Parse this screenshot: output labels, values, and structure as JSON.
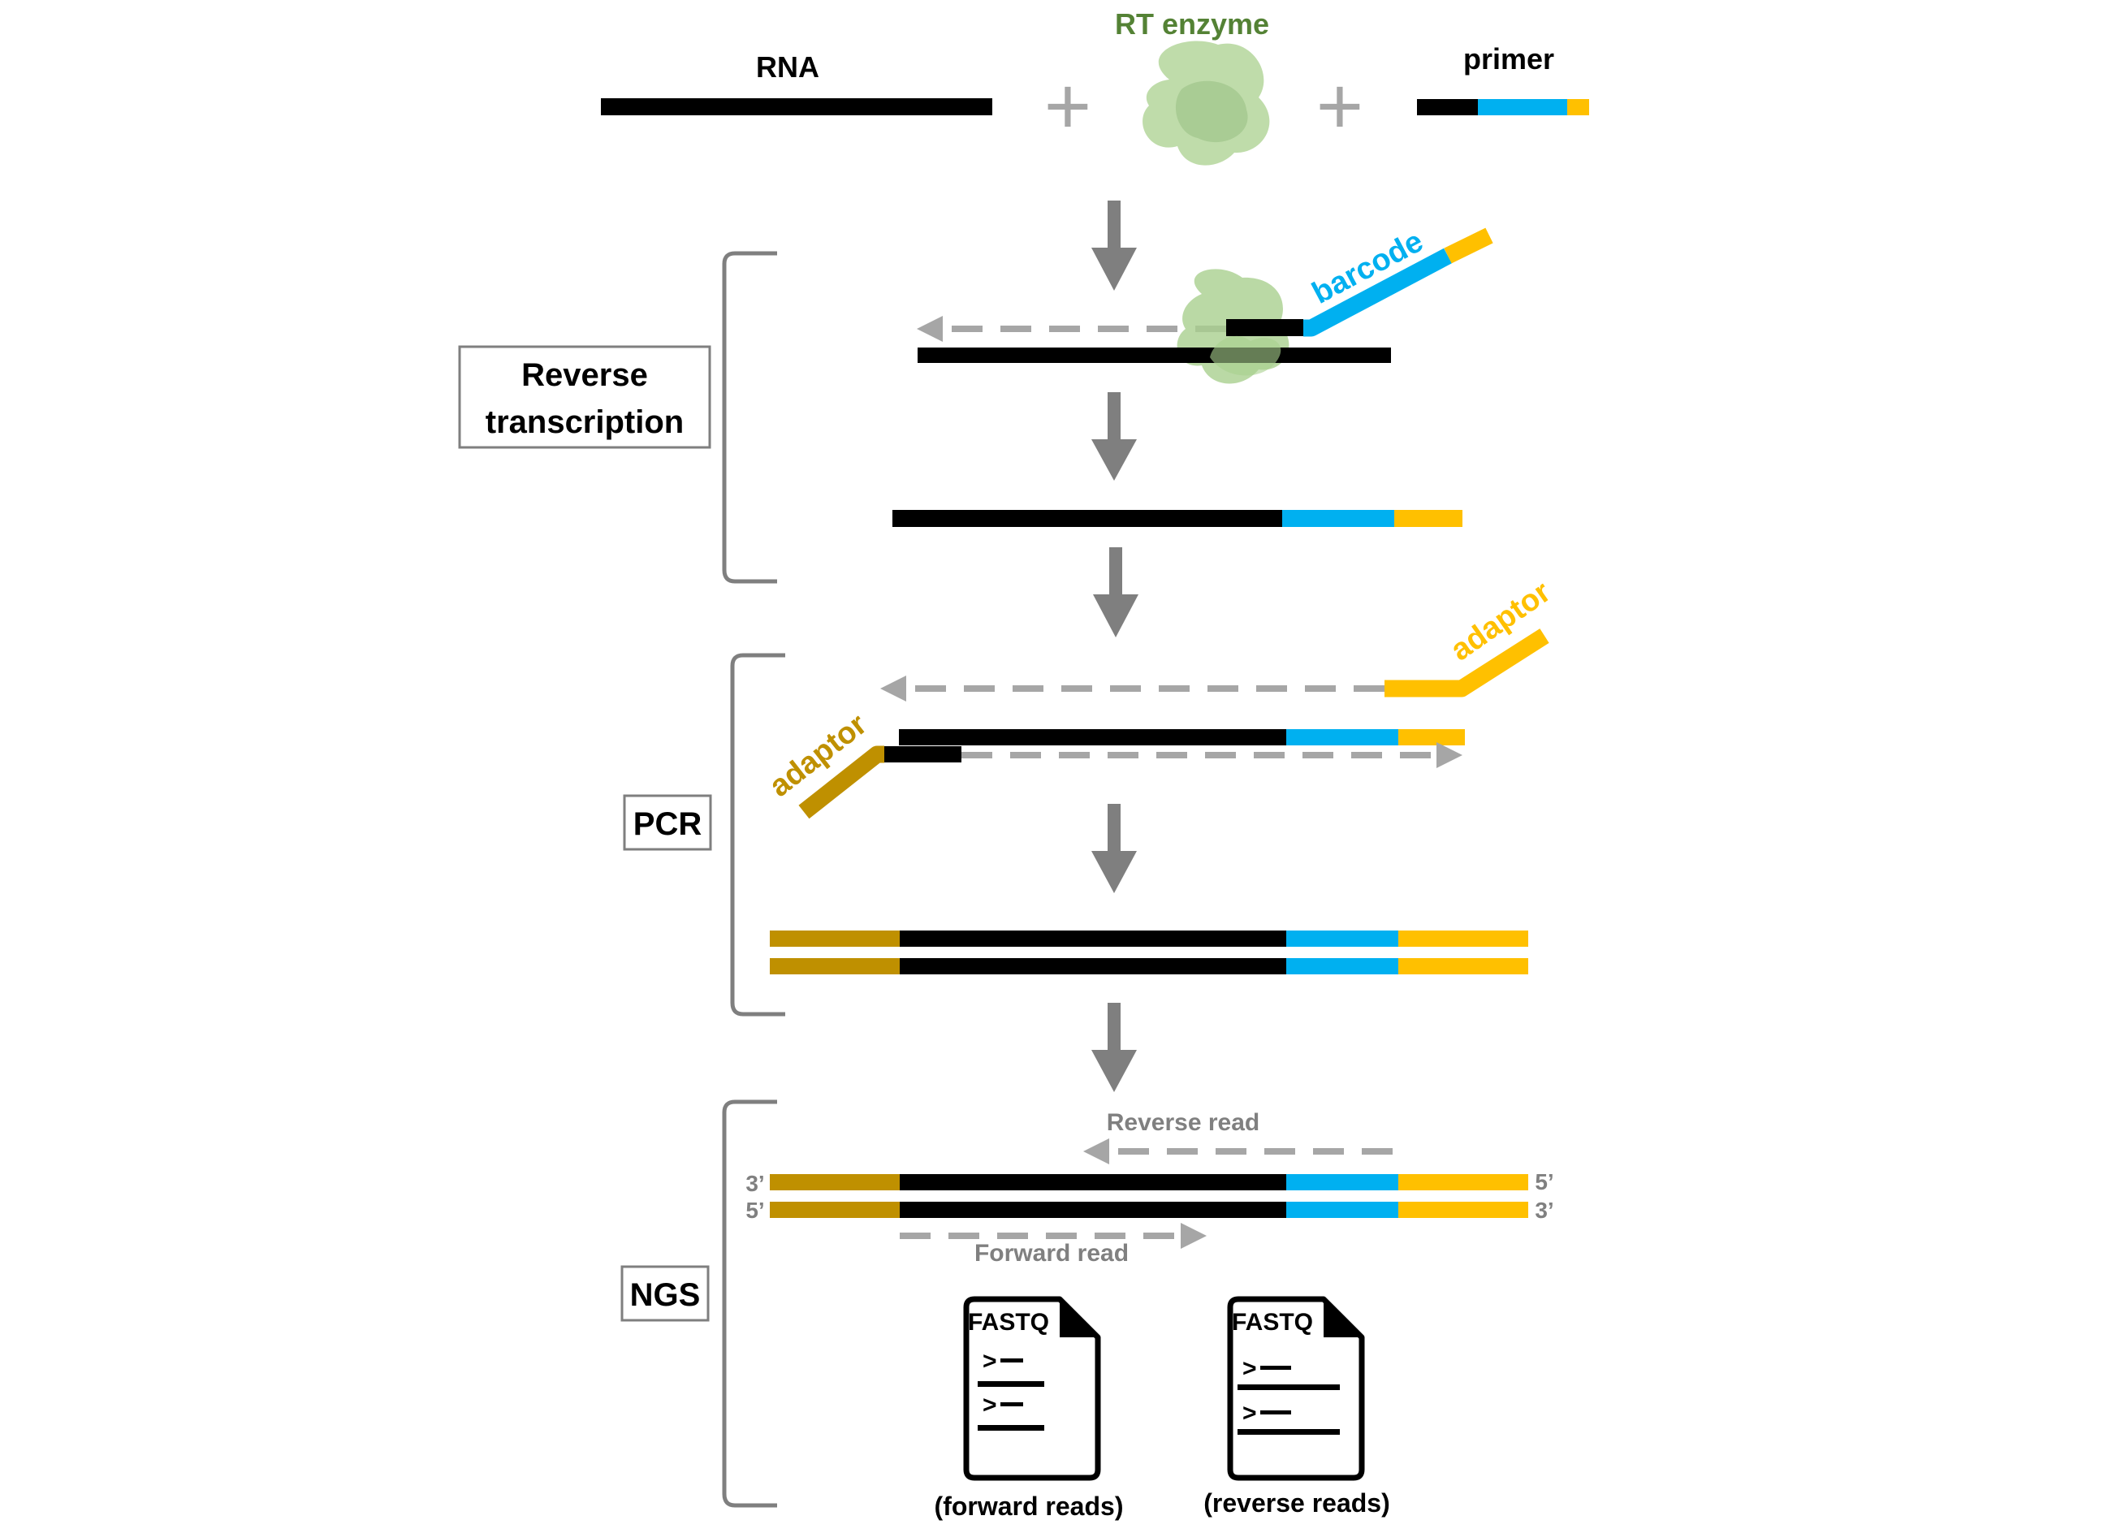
{
  "labels": {
    "rna": "RNA",
    "rt_enzyme": "RT enzyme",
    "primer": "primer",
    "plus": "+",
    "barcode": "barcode",
    "adaptor": "adaptor",
    "reverse_read": "Reverse read",
    "forward_read": "Forward read",
    "end_3": "3’",
    "end_5": "5’"
  },
  "steps": {
    "reverse_transcription": [
      "Reverse",
      "transcription"
    ],
    "pcr": "PCR",
    "ngs": "NGS"
  },
  "files": [
    {
      "header": "FASTQ",
      "caption": "(forward reads)",
      "prompt": ">"
    },
    {
      "header": "FASTQ",
      "caption": "(reverse reads)",
      "prompt": ">"
    }
  ],
  "colors": {
    "rna": "#000000",
    "barcode": "#00b0f0",
    "adaptor_3prime": "#ffc000",
    "adaptor_5prime": "#bf9000",
    "enzyme": "#a9d08e",
    "enzyme_label": "#548235",
    "arrow": "#7f7f7f",
    "dashed": "#a6a6a6"
  }
}
